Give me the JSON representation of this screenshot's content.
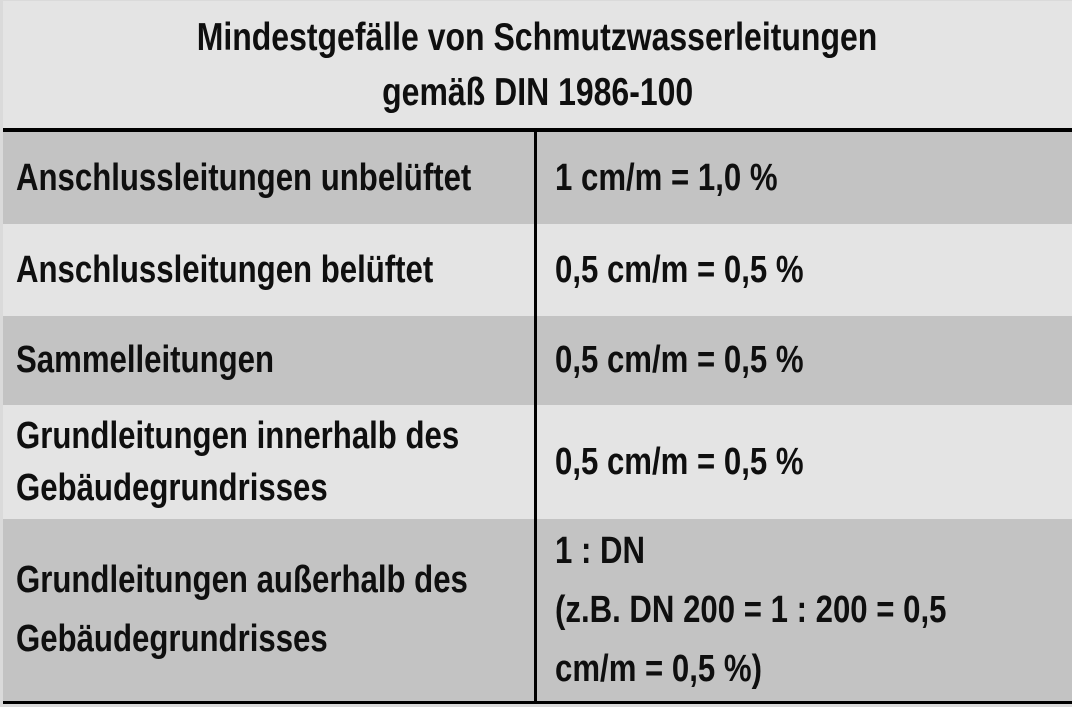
{
  "chart_data": {
    "type": "table",
    "title": "Mindestgefälle von Schmutzwasserleitungen gemäß DIN 1986-100",
    "rows": [
      [
        "Anschlussleitungen unbelüftet",
        "1 cm/m = 1,0 %"
      ],
      [
        "Anschlussleitungen belüftet",
        "0,5 cm/m = 0,5 %"
      ],
      [
        "Sammelleitungen",
        "0,5 cm/m = 0,5 %"
      ],
      [
        "Grundleitungen innerhalb des Gebäudegrundrisses",
        "0,5 cm/m = 0,5 %"
      ],
      [
        "Grundleitungen außerhalb des Gebäudegrundrisses",
        "1 : DN (z.B. DN 200 = 1 : 200 = 0,5 cm/m = 0,5 %)"
      ]
    ],
    "layout": "two-column table, no column headers, alternating row shading, header band on top"
  },
  "table": {
    "title_lines": [
      "Mindestgefälle von Schmutzwasserleitungen",
      "gemäß DIN 1986-100"
    ],
    "rows": [
      {
        "label_lines": [
          "Anschlussleitungen unbelüftet"
        ],
        "value_lines": [
          "1 cm/m = 1,0 %"
        ],
        "shade": "dark"
      },
      {
        "label_lines": [
          "Anschlussleitungen belüftet"
        ],
        "value_lines": [
          "0,5 cm/m = 0,5 %"
        ],
        "shade": "light"
      },
      {
        "label_lines": [
          "Sammelleitungen"
        ],
        "value_lines": [
          "0,5 cm/m = 0,5 %"
        ],
        "shade": "dark"
      },
      {
        "label_lines": [
          "Grundleitungen innerhalb des",
          "Gebäudegrundrisses"
        ],
        "value_lines": [
          "0,5 cm/m = 0,5 %"
        ],
        "shade": "light"
      },
      {
        "label_lines": [
          "Grundleitungen außerhalb des",
          "Gebäudegrundrisses"
        ],
        "value_lines": [
          "1 : DN",
          "(z.B. DN 200 = 1 : 200 = 0,5",
          "cm/m = 0,5 %)"
        ],
        "shade": "dark"
      }
    ],
    "colors": {
      "row_dark": "#c3c3c3",
      "row_light": "#e4e4e4",
      "line": "#000000",
      "text": "#0f0f0f",
      "page_bg": "#dadada"
    }
  }
}
